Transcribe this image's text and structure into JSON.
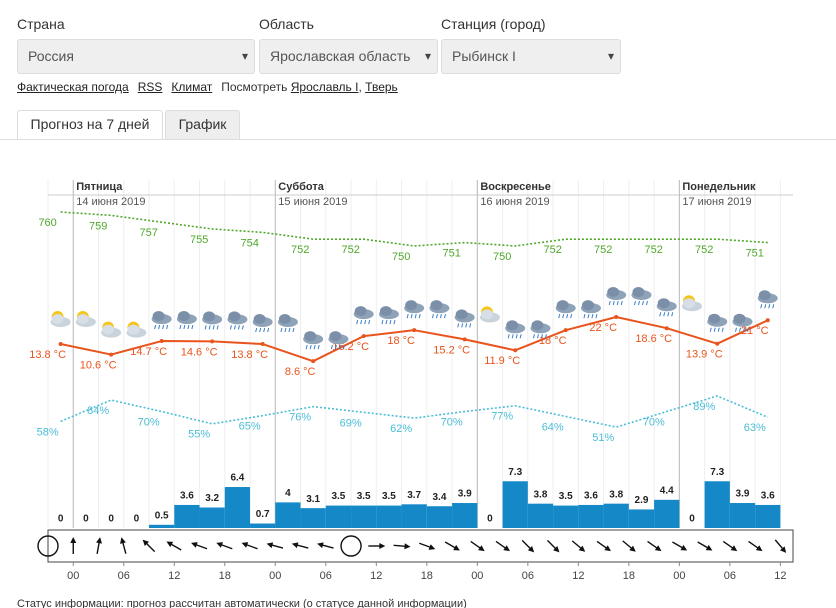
{
  "form": {
    "fields": [
      {
        "label": "Страна",
        "value": "Россия"
      },
      {
        "label": "Область",
        "value": "Ярославская область"
      },
      {
        "label": "Станция (город)",
        "value": "Рыбинск I"
      }
    ]
  },
  "links": {
    "items": [
      "Фактическая погода",
      "RSS",
      "Климат"
    ],
    "see_label": "Посмотреть",
    "see_links": [
      "Ярославль I",
      "Тверь"
    ],
    "separator": ","
  },
  "tabs": [
    "Прогноз на 7 дней",
    "График"
  ],
  "chart_data": [
    {
      "type": "line",
      "days": [
        {
          "name": "Пятница",
          "date": "14 июня 2019",
          "x": 0
        },
        {
          "name": "Суббота",
          "date": "15 июня 2019",
          "x": 24
        },
        {
          "name": "Воскресенье",
          "date": "16 июня 2019",
          "x": 48
        },
        {
          "name": "Понедельник",
          "date": "17 июня 2019",
          "x": 72
        }
      ],
      "xlim": [
        -3,
        85.5
      ],
      "x": [
        -1.5,
        4.5,
        10.5,
        16.5,
        22.5,
        28.5,
        34.5,
        40.5,
        46.5,
        52.5,
        58.5,
        64.5,
        70.5,
        76.5,
        82.5
      ],
      "series": [
        {
          "color": "#4fa82b",
          "dotted": true,
          "ylim": [
            667,
            765
          ],
          "values": [
            760,
            759,
            757,
            755,
            754,
            752,
            752,
            750,
            751,
            750,
            752,
            752,
            752,
            752,
            751
          ]
        },
        {
          "color": "#e8541c",
          "dotted": false,
          "markers": true,
          "ylim": [
            -42,
            59
          ],
          "values": [
            13.8,
            10.6,
            14.7,
            14.6,
            13.8,
            8.6,
            16.2,
            18,
            15.2,
            11.9,
            18,
            22,
            18.6,
            13.9,
            21
          ],
          "value_labels": [
            "13.8 °C",
            "10.6 °C",
            "14.7 °C",
            "14.6 °C",
            "13.8 °C",
            "8.6 °C",
            "16.2 °C",
            "18 °C",
            "15.2 °C",
            "11.9 °C",
            "18 °C",
            "22 °C",
            "18.6 °C",
            "13.9 °C",
            "21 °C"
          ]
        },
        {
          "color": "#4cbdd6",
          "dotted": true,
          "ylim": [
            -72,
            334
          ],
          "values": [
            58,
            84,
            70,
            55,
            65,
            76,
            69,
            62,
            70,
            77,
            64,
            51,
            70,
            89,
            63
          ],
          "value_labels": [
            "58%",
            "84%",
            "70%",
            "55%",
            "65%",
            "76%",
            "69%",
            "62%",
            "70%",
            "77%",
            "64%",
            "51%",
            "70%",
            "89%",
            "63%"
          ]
        }
      ]
    },
    {
      "type": "bar",
      "color": "#1589c8",
      "xlim": [
        -3,
        85.5
      ],
      "ylim": [
        0,
        52
      ],
      "xticks": [
        {
          "value": 0,
          "label": "00"
        },
        {
          "value": 6,
          "label": "06"
        },
        12,
        18,
        {
          "value": 24,
          "label": "00"
        },
        {
          "value": 30,
          "label": "06"
        },
        {
          "value": 36,
          "label": "12"
        },
        {
          "value": 42,
          "label": "18"
        },
        {
          "value": 48,
          "label": "00"
        },
        {
          "value": 54,
          "label": "06"
        },
        {
          "value": 60,
          "label": "12"
        },
        {
          "value": 66,
          "label": "18"
        },
        {
          "value": 72,
          "label": "00"
        },
        {
          "value": 78,
          "label": "06"
        },
        {
          "value": 84,
          "label": "12"
        }
      ],
      "x": [
        -1.5,
        1.5,
        4.5,
        7.5,
        10.5,
        13.5,
        16.5,
        19.5,
        22.5,
        25.5,
        28.5,
        31.5,
        34.5,
        37.5,
        40.5,
        43.5,
        46.5,
        49.5,
        52.5,
        55.5,
        58.5,
        61.5,
        64.5,
        67.5,
        70.5,
        73.5,
        76.5,
        79.5,
        82.5
      ],
      "values": [
        0,
        0,
        0,
        0,
        0.5,
        3.6,
        3.2,
        6.4,
        0.7,
        4,
        3.1,
        3.5,
        3.5,
        3.5,
        3.7,
        3.4,
        3.9,
        0,
        7.3,
        3.8,
        3.5,
        3.6,
        3.8,
        2.9,
        4.4,
        0,
        7.3,
        3.9,
        3.6
      ],
      "wind": {
        "x": [
          -3,
          0,
          3,
          6,
          9,
          12,
          15,
          18,
          21,
          24,
          27,
          30,
          33,
          36,
          39,
          42,
          45,
          48,
          51,
          54,
          57,
          60,
          63,
          66,
          69,
          72,
          75,
          78,
          81,
          84
        ],
        "direction": [
          null,
          0,
          10,
          -15,
          -45,
          -60,
          -70,
          -70,
          -70,
          -75,
          -75,
          -75,
          null,
          90,
          95,
          110,
          120,
          125,
          125,
          135,
          135,
          130,
          125,
          130,
          125,
          120,
          120,
          125,
          125,
          140
        ]
      }
    }
  ],
  "status": "Статус информации: прогноз рассчитан автоматически (о статусе данной информации)"
}
